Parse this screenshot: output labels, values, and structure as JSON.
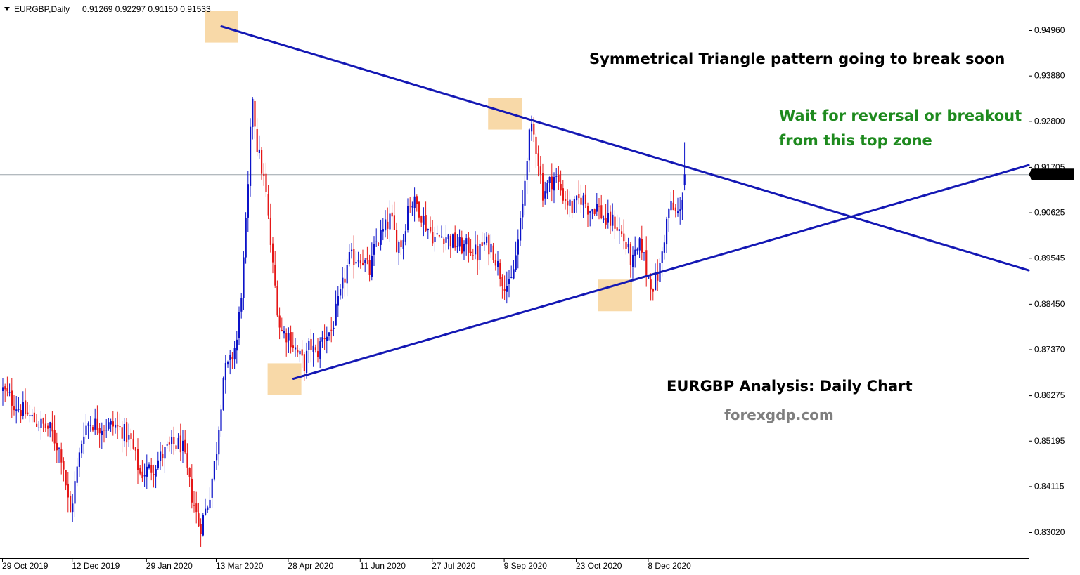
{
  "header": {
    "symbol": "EURGBP,Daily",
    "values": "0.91269 0.92297 0.91150 0.91533"
  },
  "colors": {
    "bull": "#0b12c8",
    "bear": "#e51717",
    "trendline": "#1418b4",
    "zone": "#f8d9a8",
    "current_line": "#9aa3aa",
    "annotation_green": "#1e8a1e",
    "annotation_gray": "#7f7f7f"
  },
  "annotations": {
    "title": "Symmetrical Triangle pattern going to break soon",
    "wait_line1": "Wait for reversal or breakout",
    "wait_line2": "from this top zone",
    "analysis": "EURGBP Analysis: Daily Chart",
    "site": "forexgdp.com"
  },
  "chart_data": {
    "type": "candlestick",
    "symbol": "EURGBP",
    "timeframe": "Daily",
    "ohlc_last": {
      "open": 0.91269,
      "high": 0.92297,
      "low": 0.9115,
      "close": 0.91533
    },
    "current_price": 0.91533,
    "current_price_label": "0.91533",
    "ylim": [
      0.8245,
      0.9538
    ],
    "y_ticks": [
      "0.94960",
      "0.93880",
      "0.92800",
      "0.91705",
      "0.90625",
      "0.89545",
      "0.88450",
      "0.87370",
      "0.86275",
      "0.85195",
      "0.84115",
      "0.83020"
    ],
    "x_ticks": [
      "29 Oct 2019",
      "12 Dec 2019",
      "29 Jan 2020",
      "13 Mar 2020",
      "28 Apr 2020",
      "11 Jun 2020",
      "27 Jul 2020",
      "9 Sep 2020",
      "23 Oct 2020",
      "8 Dec 2020"
    ],
    "bar_count": 304,
    "anchors": [
      [
        0,
        0.864
      ],
      [
        10,
        0.86
      ],
      [
        22,
        0.8565
      ],
      [
        32,
        0.8545
      ],
      [
        40,
        0.848
      ],
      [
        45,
        0.834
      ],
      [
        48,
        0.841
      ],
      [
        54,
        0.8545
      ],
      [
        58,
        0.8565
      ],
      [
        65,
        0.8555
      ],
      [
        75,
        0.8555
      ],
      [
        80,
        0.8545
      ],
      [
        86,
        0.8515
      ],
      [
        92,
        0.844
      ],
      [
        100,
        0.8455
      ],
      [
        108,
        0.849
      ],
      [
        114,
        0.851
      ],
      [
        120,
        0.851
      ],
      [
        126,
        0.84
      ],
      [
        132,
        0.831
      ],
      [
        138,
        0.838
      ],
      [
        143,
        0.849
      ],
      [
        148,
        0.868
      ],
      [
        152,
        0.87
      ],
      [
        157,
        0.876
      ],
      [
        161,
        0.892
      ],
      [
        165,
        0.915
      ],
      [
        167,
        0.936
      ],
      [
        170,
        0.923
      ],
      [
        176,
        0.912
      ],
      [
        181,
        0.893
      ],
      [
        186,
        0.878
      ],
      [
        192,
        0.877
      ],
      [
        197,
        0.873
      ],
      [
        202,
        0.87
      ],
      [
        206,
        0.875
      ],
      [
        210,
        0.872
      ],
      [
        215,
        0.877
      ],
      [
        220,
        0.878
      ],
      [
        226,
        0.886
      ],
      [
        232,
        0.895
      ],
      [
        240,
        0.896
      ],
      [
        246,
        0.892
      ],
      [
        250,
        0.899
      ],
      [
        254,
        0.901
      ],
      [
        260,
        0.905
      ],
      [
        264,
        0.899
      ],
      [
        268,
        0.899
      ],
      [
        272,
        0.909
      ],
      [
        278,
        0.908
      ],
      [
        284,
        0.903
      ],
      [
        290,
        0.9
      ],
      [
        296,
        0.901
      ],
      [
        302,
        0.899
      ],
      [
        308,
        0.898
      ],
      [
        314,
        0.898
      ],
      [
        318,
        0.896
      ],
      [
        322,
        0.899
      ],
      [
        328,
        0.898
      ],
      [
        334,
        0.891
      ],
      [
        340,
        0.888
      ],
      [
        344,
        0.896
      ],
      [
        348,
        0.906
      ],
      [
        352,
        0.923
      ],
      [
        355,
        0.926
      ],
      [
        358,
        0.921
      ],
      [
        362,
        0.911
      ],
      [
        366,
        0.913
      ],
      [
        370,
        0.915
      ],
      [
        376,
        0.91
      ],
      [
        382,
        0.907
      ],
      [
        388,
        0.91
      ],
      [
        393,
        0.907
      ],
      [
        398,
        0.908
      ],
      [
        404,
        0.904
      ],
      [
        410,
        0.904
      ],
      [
        416,
        0.9
      ],
      [
        422,
        0.894
      ],
      [
        428,
        0.899
      ],
      [
        432,
        0.891
      ],
      [
        436,
        0.889
      ],
      [
        440,
        0.892
      ],
      [
        444,
        0.902
      ],
      [
        447,
        0.908
      ],
      [
        451,
        0.906
      ],
      [
        454,
        0.906
      ],
      [
        457,
        0.9153
      ]
    ],
    "trendlines": [
      {
        "name": "upper",
        "from": {
          "date": "13 Mar 2020",
          "price": 0.9505
        },
        "to": {
          "date": "9 Sep 2020",
          "price": 0.9298
        }
      },
      {
        "name": "lower",
        "from": {
          "date": "28 Apr 2020",
          "price": 0.8667
        },
        "to": {
          "date": "23 Oct 2020",
          "price": 0.8866
        }
      }
    ],
    "zones": [
      "March 2020 high",
      "April 2020 low",
      "September 2020 high",
      "November 2020 low"
    ]
  }
}
